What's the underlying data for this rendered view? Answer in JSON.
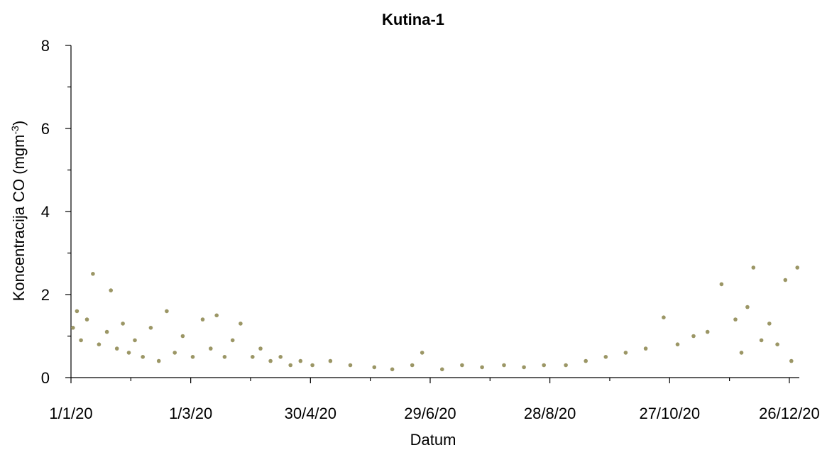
{
  "chart_data": {
    "type": "scatter",
    "title": "Kutina-1",
    "xlabel": "Datum",
    "ylabel": "Koncentracija CO (mgm",
    "ylabel_sup": "-3",
    "ylabel_close": ")",
    "x_start": "2020-01-01",
    "x_end": "2020-12-31",
    "xlim": [
      "2020-01-01",
      "2020-12-31"
    ],
    "xticks": [
      {
        "date": "2020-01-01",
        "label": "1/1/20"
      },
      {
        "date": "2020-03-01",
        "label": "1/3/20"
      },
      {
        "date": "2020-04-30",
        "label": "30/4/20"
      },
      {
        "date": "2020-06-29",
        "label": "29/6/20"
      },
      {
        "date": "2020-08-28",
        "label": "28/8/20"
      },
      {
        "date": "2020-10-27",
        "label": "27/10/20"
      },
      {
        "date": "2020-12-26",
        "label": "26/12/20"
      }
    ],
    "ylim": [
      0,
      8
    ],
    "yticks": [
      0,
      2,
      4,
      6,
      8
    ],
    "grid": false,
    "marker_color": "#9b9665",
    "series": [
      {
        "points": [
          [
            "2020-01-02",
            1.2
          ],
          [
            "2020-01-04",
            1.6
          ],
          [
            "2020-01-06",
            0.9
          ],
          [
            "2020-01-09",
            1.4
          ],
          [
            "2020-01-12",
            2.5
          ],
          [
            "2020-01-15",
            0.8
          ],
          [
            "2020-01-19",
            1.1
          ],
          [
            "2020-01-21",
            2.1
          ],
          [
            "2020-01-24",
            0.7
          ],
          [
            "2020-01-27",
            1.3
          ],
          [
            "2020-01-30",
            0.6
          ],
          [
            "2020-02-02",
            0.9
          ],
          [
            "2020-02-06",
            0.5
          ],
          [
            "2020-02-10",
            1.2
          ],
          [
            "2020-02-14",
            0.4
          ],
          [
            "2020-02-18",
            1.6
          ],
          [
            "2020-02-22",
            0.6
          ],
          [
            "2020-02-26",
            1.0
          ],
          [
            "2020-03-02",
            0.5
          ],
          [
            "2020-03-07",
            1.4
          ],
          [
            "2020-03-11",
            0.7
          ],
          [
            "2020-03-14",
            1.5
          ],
          [
            "2020-03-18",
            0.5
          ],
          [
            "2020-03-22",
            0.9
          ],
          [
            "2020-03-26",
            1.3
          ],
          [
            "2020-04-01",
            0.5
          ],
          [
            "2020-04-05",
            0.7
          ],
          [
            "2020-04-10",
            0.4
          ],
          [
            "2020-04-15",
            0.5
          ],
          [
            "2020-04-20",
            0.3
          ],
          [
            "2020-04-25",
            0.4
          ],
          [
            "2020-05-01",
            0.3
          ],
          [
            "2020-05-10",
            0.4
          ],
          [
            "2020-05-20",
            0.3
          ],
          [
            "2020-06-01",
            0.25
          ],
          [
            "2020-06-10",
            0.2
          ],
          [
            "2020-06-20",
            0.3
          ],
          [
            "2020-06-25",
            0.6
          ],
          [
            "2020-07-05",
            0.2
          ],
          [
            "2020-07-15",
            0.3
          ],
          [
            "2020-07-25",
            0.25
          ],
          [
            "2020-08-05",
            0.3
          ],
          [
            "2020-08-15",
            0.25
          ],
          [
            "2020-08-25",
            0.3
          ],
          [
            "2020-09-05",
            0.3
          ],
          [
            "2020-09-15",
            0.4
          ],
          [
            "2020-09-25",
            0.5
          ],
          [
            "2020-10-05",
            0.6
          ],
          [
            "2020-10-15",
            0.7
          ],
          [
            "2020-10-24",
            1.45
          ],
          [
            "2020-10-31",
            0.8
          ],
          [
            "2020-11-08",
            1.0
          ],
          [
            "2020-11-15",
            1.1
          ],
          [
            "2020-11-22",
            2.25
          ],
          [
            "2020-11-29",
            1.4
          ],
          [
            "2020-12-02",
            0.6
          ],
          [
            "2020-12-05",
            1.7
          ],
          [
            "2020-12-08",
            2.65
          ],
          [
            "2020-12-12",
            0.9
          ],
          [
            "2020-12-16",
            1.3
          ],
          [
            "2020-12-20",
            0.8
          ],
          [
            "2020-12-24",
            2.35
          ],
          [
            "2020-12-27",
            0.4
          ],
          [
            "2020-12-30",
            2.65
          ]
        ]
      }
    ]
  }
}
